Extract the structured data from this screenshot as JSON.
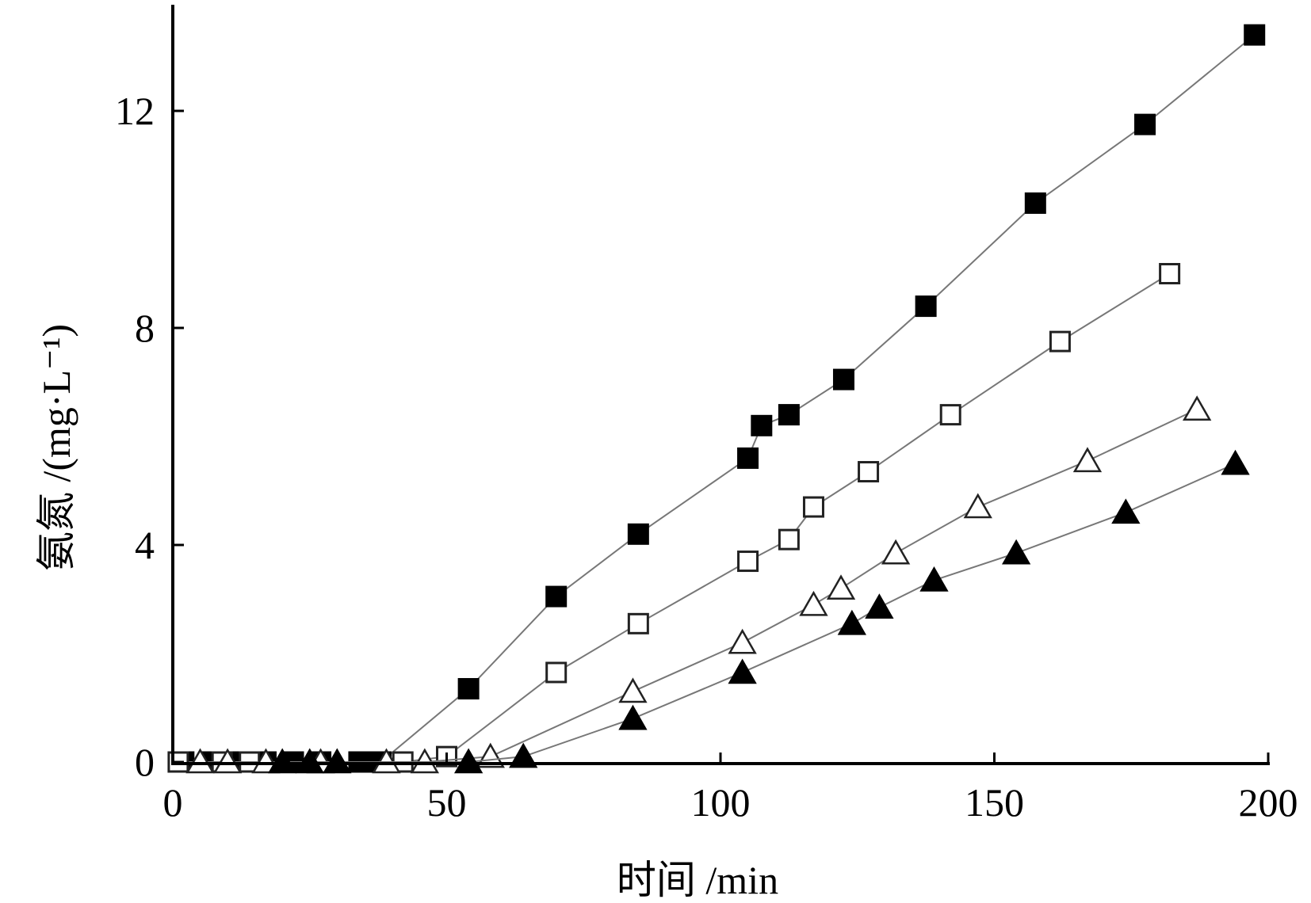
{
  "chart_data": {
    "type": "line",
    "title": "",
    "xlabel": "时间 /min",
    "ylabel": "氨氮 /(mg·L⁻¹)",
    "xlim": [
      0,
      200
    ],
    "ylim": [
      0,
      13.8
    ],
    "xticks": [
      0,
      50,
      100,
      150,
      200
    ],
    "yticks": [
      0,
      4,
      8,
      12
    ],
    "grid": false,
    "legend": "none",
    "series": [
      {
        "name": "filled-square",
        "marker": "square-filled",
        "x": [
          2,
          7,
          12,
          17,
          22,
          27,
          34,
          36,
          38,
          54,
          70,
          85,
          105,
          107.5,
          112.5,
          122.5,
          137.5,
          157.5,
          177.5,
          197.5
        ],
        "y": [
          0,
          0,
          0,
          0,
          0,
          0,
          0,
          0,
          0,
          1.35,
          3.05,
          4.2,
          5.6,
          6.2,
          6.4,
          7.05,
          8.4,
          10.3,
          11.75,
          13.4
        ]
      },
      {
        "name": "open-square",
        "marker": "square-open",
        "x": [
          1,
          9,
          14,
          42,
          50,
          70,
          85,
          105,
          112.5,
          117,
          127,
          142,
          162,
          182
        ],
        "y": [
          0,
          0,
          0,
          0,
          0.1,
          1.65,
          2.55,
          3.7,
          4.1,
          4.7,
          5.35,
          6.4,
          7.75,
          9.0
        ]
      },
      {
        "name": "open-triangle",
        "marker": "triangle-open",
        "x": [
          5,
          10,
          17,
          27,
          39,
          46,
          58,
          84,
          104,
          117,
          122,
          132,
          147,
          167,
          187
        ],
        "y": [
          0,
          0,
          0,
          0,
          0,
          0,
          0.1,
          1.3,
          2.2,
          2.9,
          3.2,
          3.85,
          4.7,
          5.55,
          6.5
        ]
      },
      {
        "name": "filled-triangle",
        "marker": "triangle-filled",
        "x": [
          20,
          25,
          30,
          54,
          64,
          84,
          104,
          124,
          129,
          139,
          154,
          174,
          194
        ],
        "y": [
          0,
          0,
          0,
          0,
          0.1,
          0.8,
          1.65,
          2.55,
          2.85,
          3.35,
          3.85,
          4.6,
          5.5
        ]
      }
    ]
  }
}
